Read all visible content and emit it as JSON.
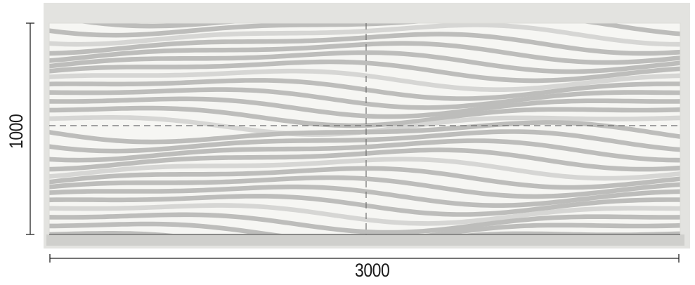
{
  "dimensions": {
    "width_label": "3000",
    "height_label": "1000"
  },
  "panel": {
    "pattern": "wave-stripes",
    "colors": {
      "background": "#e3e3e0",
      "panel_base": "#f6f6f3",
      "stripe": "#bdbdbb",
      "stripe_light": "#d6d6d4",
      "guide_line": "#6e6e6e",
      "dimension_line": "#222222"
    }
  }
}
